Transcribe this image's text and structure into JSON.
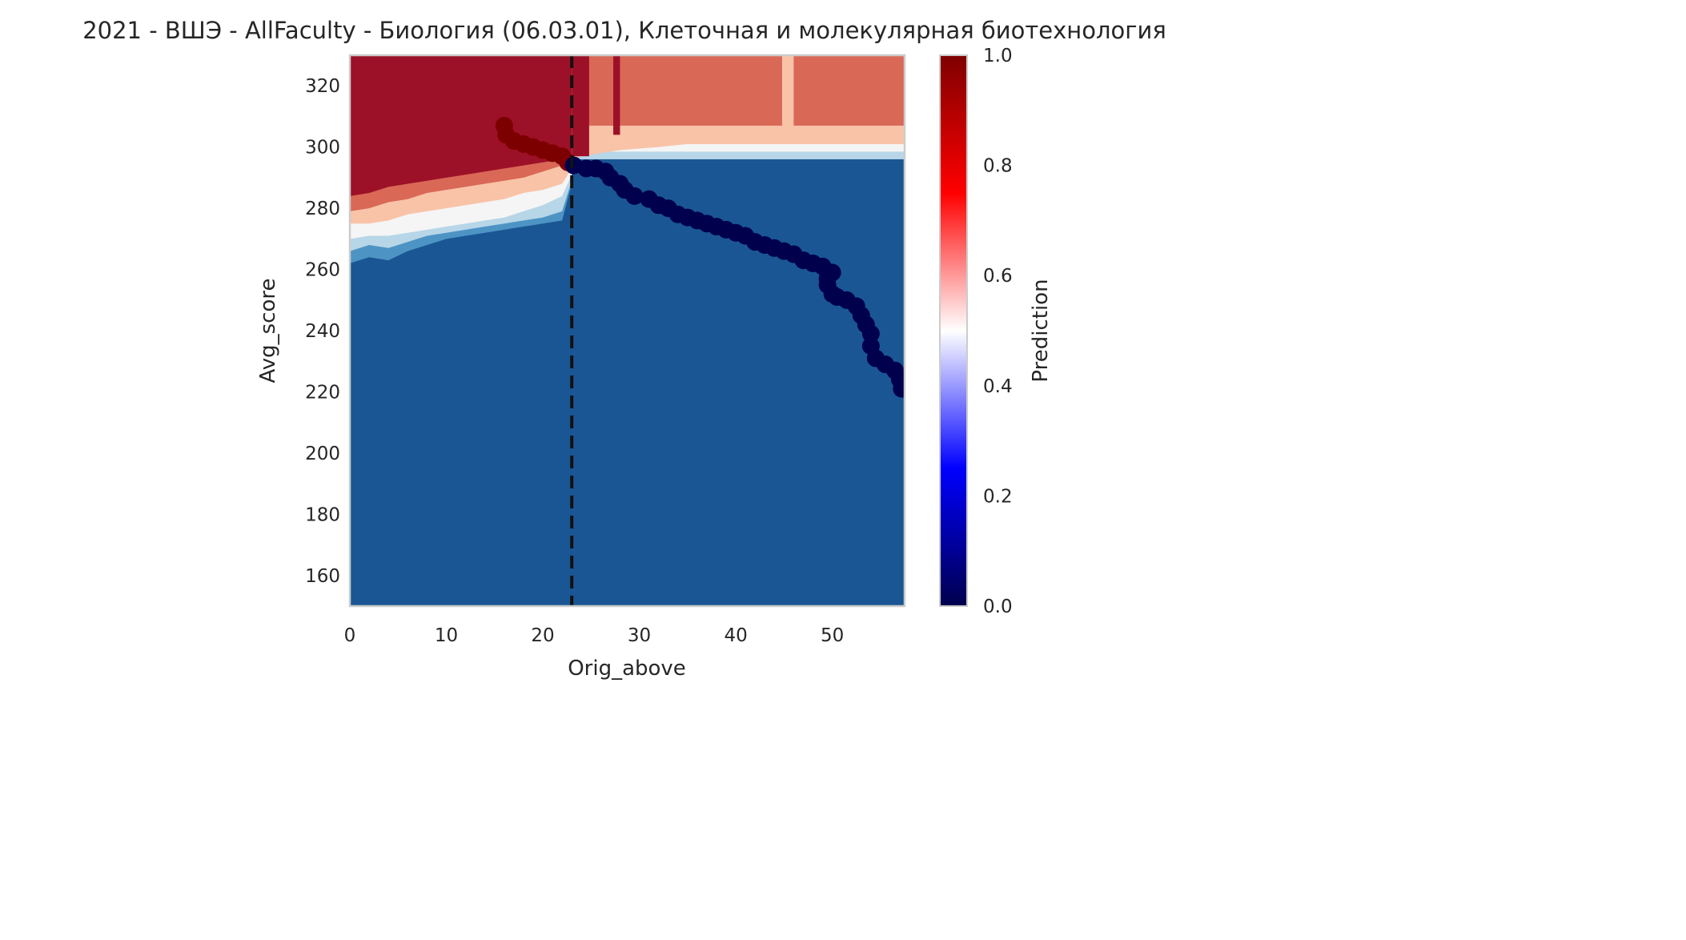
{
  "chart_data": {
    "type": "heatmap",
    "title": "2021 - ВШЭ - AllFaculty - Биология (06.03.01), Клеточная и молекулярная биотехнология",
    "xlabel": "Orig_above",
    "ylabel": "Avg_score",
    "xlim": [
      0,
      57.5
    ],
    "ylim": [
      150,
      330
    ],
    "x_ticks": [
      "0",
      "10",
      "20",
      "30",
      "40",
      "50"
    ],
    "y_ticks": [
      "160",
      "180",
      "200",
      "220",
      "240",
      "260",
      "280",
      "300",
      "320"
    ],
    "colorbar": {
      "label": "Prediction",
      "range": [
        0,
        1
      ],
      "ticks": [
        "0.0",
        "0.2",
        "0.4",
        "0.6",
        "0.8",
        "1.0"
      ],
      "colormap": "seismic"
    },
    "grid": false,
    "vertical_line": {
      "x": 23,
      "style": "dashed",
      "color": "#111111"
    },
    "decision_boundary": [
      [
        0,
        270
      ],
      [
        2,
        271
      ],
      [
        4,
        271
      ],
      [
        6,
        273
      ],
      [
        8,
        275
      ],
      [
        10,
        276
      ],
      [
        12,
        277
      ],
      [
        14,
        278
      ],
      [
        16,
        279
      ],
      [
        18,
        280
      ],
      [
        20,
        282
      ],
      [
        22,
        286
      ],
      [
        23,
        292
      ],
      [
        25,
        297
      ],
      [
        30,
        299
      ],
      [
        40,
        299.5
      ],
      [
        57.5,
        299.5
      ]
    ],
    "levels": [
      {
        "name": "level_1.0",
        "value": 0.93,
        "color": "#9c1127",
        "upper_bound": [
          [
            0,
            284
          ],
          [
            4,
            287
          ],
          [
            8,
            290
          ],
          [
            12,
            291
          ],
          [
            16,
            293
          ],
          [
            20,
            295
          ],
          [
            23,
            296
          ],
          [
            23,
            330
          ],
          [
            0,
            330
          ]
        ]
      },
      {
        "name": "level_0.8",
        "value": 0.72,
        "color": "#d96856"
      },
      {
        "name": "level_0.6",
        "value": 0.62,
        "color": "#f9c3a8"
      },
      {
        "name": "level_0.5",
        "value": 0.5,
        "color": "#f5f5f5"
      },
      {
        "name": "level_0.4",
        "value": 0.4,
        "color": "#b7d6e8"
      },
      {
        "name": "level_0.3",
        "value": 0.3,
        "color": "#4d94c4"
      },
      {
        "name": "level_0.0",
        "value": 0.1,
        "color": "#1a5694"
      }
    ],
    "series": [
      {
        "label_color": "#7d0000",
        "points": [
          [
            16,
            307
          ],
          [
            16.2,
            304
          ],
          [
            17,
            302
          ],
          [
            18,
            301
          ],
          [
            19,
            300
          ],
          [
            20,
            299
          ],
          [
            21,
            298
          ],
          [
            22,
            297
          ],
          [
            22.6,
            295
          ]
        ]
      },
      {
        "label_color": "#00004d",
        "points": [
          [
            23.2,
            294
          ],
          [
            24.5,
            293
          ],
          [
            25.5,
            293
          ],
          [
            26.5,
            292
          ],
          [
            27,
            290
          ],
          [
            28,
            288
          ],
          [
            28.5,
            286
          ],
          [
            29.5,
            284
          ],
          [
            31,
            283
          ],
          [
            32,
            281
          ],
          [
            33,
            280
          ],
          [
            34,
            278
          ],
          [
            35,
            277
          ],
          [
            36,
            276
          ],
          [
            37,
            275
          ],
          [
            38,
            274
          ],
          [
            39,
            273
          ],
          [
            40,
            272
          ],
          [
            41,
            271
          ],
          [
            42,
            269
          ],
          [
            43,
            268
          ],
          [
            44,
            267
          ],
          [
            45,
            266
          ],
          [
            46,
            265
          ],
          [
            47,
            263
          ],
          [
            48,
            262
          ],
          [
            49,
            261
          ],
          [
            50,
            259
          ],
          [
            49.5,
            257
          ],
          [
            49.5,
            255
          ],
          [
            50,
            252
          ],
          [
            50.5,
            251
          ],
          [
            51.5,
            250
          ],
          [
            52.5,
            248
          ],
          [
            53,
            245
          ],
          [
            53.5,
            242
          ],
          [
            54,
            239
          ],
          [
            54,
            235
          ],
          [
            54.5,
            231
          ],
          [
            55.5,
            229
          ],
          [
            56.5,
            227
          ],
          [
            57,
            224
          ],
          [
            57.2,
            221
          ]
        ]
      }
    ]
  }
}
